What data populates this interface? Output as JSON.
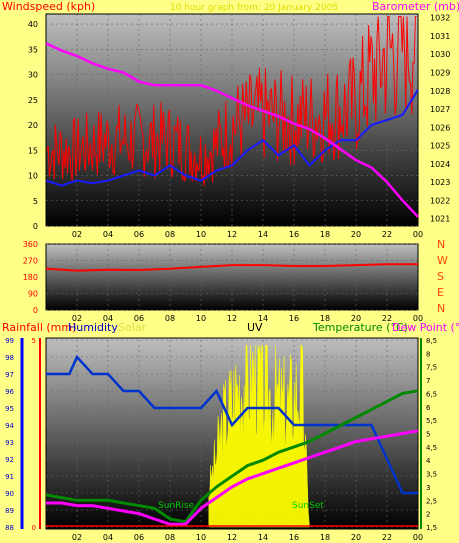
{
  "colors": {
    "background": "#ffff88",
    "windspeed": "#ff0000",
    "barometer": "#ff00ff",
    "wind_dir": "#ff0000",
    "humidity": "#0033cc",
    "rainfall": "#ff0000",
    "temperature": "#008800",
    "dewpoint": "#ff00ff",
    "solar": "#ffff00",
    "uv": "#111111",
    "dir_letters": "#ff4400"
  },
  "x_tick_labels": [
    "02",
    "04",
    "06",
    "08",
    "10",
    "12",
    "14",
    "16",
    "18",
    "20",
    "22",
    "00"
  ],
  "chart_data": [
    {
      "type": "line",
      "panel": "wind-barometer",
      "title": "10 hour graph from: 20 January 2005",
      "left_axis_label": "Windspeed (kph)",
      "right_axis_label": "Barometer (mb)",
      "left_ticks": [
        "0",
        "5",
        "10",
        "15",
        "20",
        "25",
        "30",
        "35",
        "40"
      ],
      "right_ticks": [
        "1021",
        "1022",
        "1023",
        "1024",
        "1025",
        "1026",
        "1027",
        "1028",
        "1029",
        "1030",
        "1031",
        "1032"
      ],
      "x_range_hours": [
        0,
        24
      ],
      "series": [
        {
          "key": "wind_gust",
          "color": "#ff0000",
          "x": [
            0,
            2,
            4,
            6,
            8,
            10,
            11,
            12,
            14,
            16,
            18,
            20,
            21,
            22,
            23,
            24
          ],
          "y": [
            15,
            15,
            17,
            17,
            17,
            14,
            16,
            20,
            22,
            21,
            22,
            24,
            30,
            34,
            36,
            38
          ]
        },
        {
          "key": "wind_avg",
          "color": "#1a1aff",
          "x": [
            0,
            1,
            2,
            3,
            4,
            5,
            6,
            7,
            8,
            9,
            10,
            11,
            12,
            13,
            14,
            15,
            16,
            17,
            18,
            19,
            20,
            21,
            22,
            23,
            24
          ],
          "y": [
            9,
            8,
            9,
            8.5,
            9,
            10,
            11,
            10,
            12,
            10,
            9,
            11,
            12,
            15,
            17,
            14,
            16,
            12,
            15,
            17,
            17,
            20,
            21,
            22,
            27
          ]
        },
        {
          "key": "barometer",
          "color": "#ff00ff",
          "x": [
            0,
            1,
            2,
            3,
            4,
            5,
            6,
            7,
            8,
            9,
            10,
            11,
            12,
            13,
            14,
            15,
            16,
            17,
            18,
            19,
            20,
            21,
            22,
            23,
            24
          ],
          "y": [
            1030.6,
            1030.2,
            1029.9,
            1029.5,
            1029.2,
            1029.0,
            1028.5,
            1028.3,
            1028.3,
            1028.3,
            1028.3,
            1028.0,
            1027.6,
            1027.2,
            1026.9,
            1026.6,
            1026.2,
            1025.9,
            1025.4,
            1024.8,
            1024.2,
            1023.8,
            1023.0,
            1022.0,
            1021.1
          ]
        }
      ]
    },
    {
      "type": "line",
      "panel": "wind-direction",
      "left_ticks": [
        "360",
        "270",
        "180",
        "90",
        "0"
      ],
      "direction_letters": [
        "N",
        "W",
        "S",
        "E",
        "N"
      ],
      "series": [
        {
          "key": "wind_direction",
          "color": "#ff0000",
          "x": [
            0,
            2,
            4,
            6,
            8,
            10,
            12,
            14,
            16,
            18,
            20,
            22,
            24
          ],
          "y": [
            225,
            215,
            220,
            218,
            225,
            235,
            245,
            245,
            240,
            240,
            245,
            250,
            250
          ]
        }
      ]
    },
    {
      "type": "line",
      "panel": "rain-humidity-temperature",
      "rainfall_label": "Rainfall (mm)",
      "humidity_label": "Humidity",
      "solar_label": "Solar",
      "uv_label": "UV",
      "temperature_label": "Temperature (°C)",
      "dewpoint_label": "Dew Point (°C)",
      "humidity_ticks": [
        "88",
        "89",
        "90",
        "91",
        "92",
        "93",
        "94",
        "95",
        "96",
        "97",
        "98",
        "99"
      ],
      "rain_ticks": [
        "0",
        "5"
      ],
      "temp_ticks": [
        "1,5",
        "2",
        "2,5",
        "3",
        "3,5",
        "4",
        "4,5",
        "5",
        "5,5",
        "6",
        "6,5",
        "7",
        "7,5",
        "8",
        "8,5"
      ],
      "annotations": [
        "SunRise",
        "SunSet"
      ],
      "series": [
        {
          "key": "humidity",
          "color": "#0033cc",
          "x": [
            0,
            1.5,
            2,
            3,
            4,
            5,
            6,
            7,
            8,
            9,
            10,
            11,
            12,
            13,
            14,
            15,
            16,
            17,
            18,
            19,
            20,
            21,
            22,
            23,
            24
          ],
          "y": [
            97,
            97,
            98,
            97,
            97,
            96,
            96,
            95,
            95,
            95,
            95,
            96,
            94,
            95,
            95,
            95,
            94,
            94,
            94,
            94,
            94,
            94,
            92,
            90,
            90
          ]
        },
        {
          "key": "temperature",
          "color": "#008800",
          "x": [
            0,
            1,
            2,
            3,
            4,
            5,
            6,
            7,
            8,
            9,
            10,
            11,
            12,
            13,
            14,
            15,
            16,
            17,
            18,
            19,
            20,
            21,
            22,
            23,
            24
          ],
          "y": [
            2.7,
            2.6,
            2.5,
            2.5,
            2.5,
            2.4,
            2.3,
            2.2,
            1.8,
            1.7,
            2.5,
            3.0,
            3.4,
            3.8,
            4.0,
            4.3,
            4.5,
            4.7,
            5.0,
            5.3,
            5.6,
            5.9,
            6.2,
            6.5,
            6.6
          ]
        },
        {
          "key": "dewpoint",
          "color": "#ff00ff",
          "x": [
            0,
            1,
            2,
            3,
            4,
            5,
            6,
            7,
            8,
            9,
            10,
            11,
            12,
            13,
            14,
            15,
            16,
            17,
            18,
            19,
            20,
            21,
            22,
            23,
            24
          ],
          "y": [
            2.4,
            2.4,
            2.3,
            2.3,
            2.2,
            2.1,
            2.0,
            1.8,
            1.6,
            1.6,
            2.2,
            2.6,
            3.0,
            3.3,
            3.5,
            3.7,
            3.9,
            4.1,
            4.3,
            4.5,
            4.7,
            4.8,
            4.9,
            5.0,
            5.1
          ]
        },
        {
          "key": "solar",
          "color": "#ffff00",
          "x": [
            10.5,
            11.5,
            12.5,
            13.5,
            14.5,
            15.5,
            16.5,
            17
          ],
          "y": [
            15,
            45,
            60,
            65,
            55,
            50,
            60,
            0
          ]
        }
      ]
    }
  ]
}
